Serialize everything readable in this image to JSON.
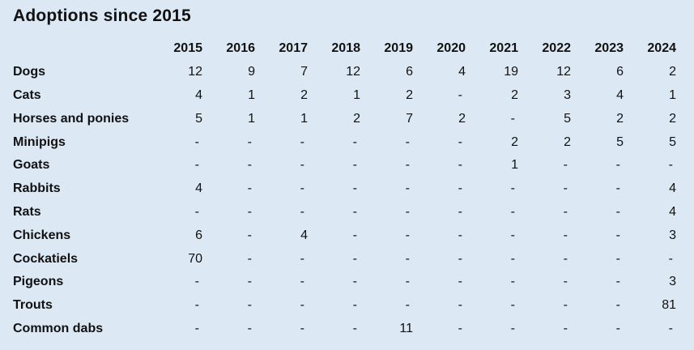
{
  "colors": {
    "background": "#dce9f5",
    "text": "#111111"
  },
  "chart_data": {
    "type": "table",
    "title": "Adoptions since 2015",
    "columns": [
      "2015",
      "2016",
      "2017",
      "2018",
      "2019",
      "2020",
      "2021",
      "2022",
      "2023",
      "2024"
    ],
    "empty_cell_marker": "-",
    "rows": [
      {
        "label": "Dogs",
        "values": [
          "12",
          "9",
          "7",
          "12",
          "6",
          "4",
          "19",
          "12",
          "6",
          "2"
        ]
      },
      {
        "label": "Cats",
        "values": [
          "4",
          "1",
          "2",
          "1",
          "2",
          "-",
          "2",
          "3",
          "4",
          "1"
        ]
      },
      {
        "label": "Horses and ponies",
        "values": [
          "5",
          "1",
          "1",
          "2",
          "7",
          "2",
          "-",
          "5",
          "2",
          "2"
        ]
      },
      {
        "label": "Minipigs",
        "values": [
          "-",
          "-",
          "-",
          "-",
          "-",
          "-",
          "2",
          "2",
          "5",
          "5"
        ]
      },
      {
        "label": "Goats",
        "values": [
          "-",
          "-",
          "-",
          "-",
          "-",
          "-",
          "1",
          "-",
          "-",
          "-"
        ]
      },
      {
        "label": "Rabbits",
        "values": [
          "4",
          "-",
          "-",
          "-",
          "-",
          "-",
          "-",
          "-",
          "-",
          "4"
        ]
      },
      {
        "label": "Rats",
        "values": [
          "-",
          "-",
          "-",
          "-",
          "-",
          "-",
          "-",
          "-",
          "-",
          "4"
        ]
      },
      {
        "label": "Chickens",
        "values": [
          "6",
          "-",
          "4",
          "-",
          "-",
          "-",
          "-",
          "-",
          "-",
          "3"
        ]
      },
      {
        "label": "Cockatiels",
        "values": [
          "70",
          "-",
          "-",
          "-",
          "-",
          "-",
          "-",
          "-",
          "-",
          "-"
        ]
      },
      {
        "label": "Pigeons",
        "values": [
          "-",
          "-",
          "-",
          "-",
          "-",
          "-",
          "-",
          "-",
          "-",
          "3"
        ]
      },
      {
        "label": "Trouts",
        "values": [
          "-",
          "-",
          "-",
          "-",
          "-",
          "-",
          "-",
          "-",
          "-",
          "81"
        ]
      },
      {
        "label": "Common dabs",
        "values": [
          "-",
          "-",
          "-",
          "-",
          "11",
          "-",
          "-",
          "-",
          "-",
          "-"
        ]
      }
    ]
  }
}
